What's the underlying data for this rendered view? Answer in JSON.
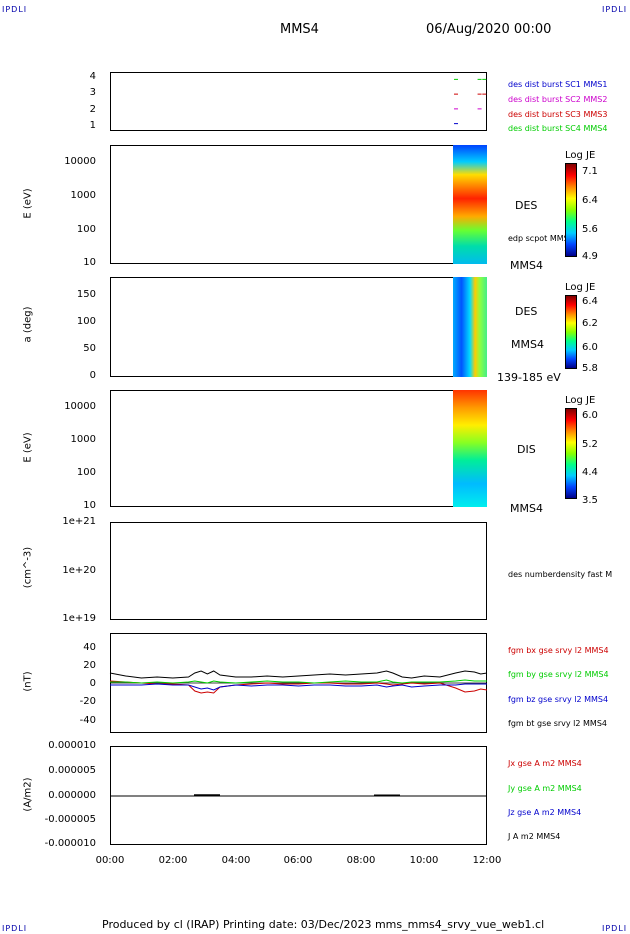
{
  "corners": {
    "tl": "IPDLI",
    "tr": "IPDLI",
    "bl": "IPDLI",
    "br": "IPDLI"
  },
  "header": {
    "spacecraft": "MMS4",
    "datetime": "06/Aug/2020 00:00"
  },
  "footer": "Produced by cl (IRAP)    Printing date: 03/Dec/2023    mms_mms4_srvy_vue_web1.cl",
  "colors": {
    "mms1": "#0000cc",
    "mms2": "#cc00cc",
    "mms3": "#cc0000",
    "mms4": "#00cc00",
    "black": "#000000"
  },
  "chart_data": [
    {
      "type": "scatter",
      "panel": "availability",
      "yticks": [
        "4",
        "3",
        "2",
        "1"
      ],
      "ylim": [
        0.5,
        4.5
      ],
      "legend": [
        {
          "label": "des dist burst SC1 MMS1",
          "color": "#0000cc"
        },
        {
          "label": "des dist burst SC2 MMS2",
          "color": "#cc00cc"
        },
        {
          "label": "des dist burst SC3 MMS3",
          "color": "#cc0000"
        },
        {
          "label": "des dist burst SC4 MMS4",
          "color": "#00cc00"
        }
      ],
      "series": [
        {
          "y": 4,
          "x": [
            10.95,
            11.7,
            11.85
          ],
          "color": "#00cc00"
        },
        {
          "y": 3,
          "x": [
            10.95,
            11.7,
            11.85
          ],
          "color": "#cc0000"
        },
        {
          "y": 2,
          "x": [
            10.95,
            11.7
          ],
          "color": "#cc00cc"
        },
        {
          "y": 1,
          "x": [
            10.95
          ],
          "color": "#0000cc"
        }
      ]
    },
    {
      "type": "heatmap",
      "panel": "des-energy",
      "ylabel": "E (eV)",
      "yticks": [
        "10000",
        "1000",
        "100",
        "10"
      ],
      "scale": "log",
      "ylim": [
        10,
        30000
      ],
      "data_x_range": [
        10.9,
        12.0
      ],
      "labels": [
        "DES",
        "edp scpot MMS4",
        "MMS4"
      ],
      "colorbar": {
        "title": "Log JE",
        "ticks": [
          "7.1",
          "6.4",
          "5.6",
          "4.9"
        ]
      }
    },
    {
      "type": "heatmap",
      "panel": "des-pitch",
      "ylabel": "a (deg)",
      "yticks": [
        "150",
        "100",
        "50",
        "0"
      ],
      "ylim": [
        0,
        180
      ],
      "data_x_range": [
        10.9,
        12.0
      ],
      "labels": [
        "DES",
        "MMS4",
        "139-185 eV"
      ],
      "colorbar": {
        "title": "Log JE",
        "ticks": [
          "6.4",
          "6.2",
          "6.0",
          "5.8"
        ]
      }
    },
    {
      "type": "heatmap",
      "panel": "dis-energy",
      "ylabel": "E (eV)",
      "yticks": [
        "10000",
        "1000",
        "100",
        "10"
      ],
      "scale": "log",
      "ylim": [
        10,
        30000
      ],
      "data_x_range": [
        10.9,
        12.0
      ],
      "labels": [
        "DIS",
        "MMS4"
      ],
      "colorbar": {
        "title": "Log JE",
        "ticks": [
          "6.0",
          "5.2",
          "4.4",
          "3.5"
        ]
      }
    },
    {
      "type": "line",
      "panel": "density",
      "ylabel": "(cm^-3)",
      "yticks": [
        "1e+21",
        "1e+20",
        "1e+19"
      ],
      "scale": "log",
      "ylim": [
        1e+19,
        1e+21
      ],
      "series": [
        {
          "name": "des numberdensity fast M",
          "values": []
        }
      ]
    },
    {
      "type": "line",
      "panel": "fgm",
      "ylabel": "(nT)",
      "yticks": [
        "40",
        "20",
        "0",
        "-20",
        "-40"
      ],
      "ylim": [
        -50,
        50
      ],
      "x": [
        0,
        0.5,
        1,
        1.5,
        2,
        2.5,
        2.7,
        2.9,
        3.1,
        3.3,
        3.5,
        4,
        4.5,
        5,
        5.5,
        6,
        6.5,
        7,
        7.5,
        8,
        8.5,
        8.8,
        9,
        9.3,
        9.6,
        10,
        10.5,
        11,
        11.3,
        11.6,
        11.8,
        12
      ],
      "series": [
        {
          "name": "fgm bx gse srvy l2 MMS4",
          "color": "#cc0000",
          "values": [
            2,
            1,
            0,
            -1,
            -1,
            -2,
            -8,
            -10,
            -9,
            -10,
            -4,
            -2,
            -1,
            0,
            -1,
            -1,
            0,
            0,
            -1,
            -1,
            0,
            -1,
            -2,
            -1,
            0,
            -1,
            0,
            -5,
            -9,
            -8,
            -6,
            -7
          ]
        },
        {
          "name": "fgm by gse srvy l2 MMS4",
          "color": "#00cc00",
          "values": [
            1,
            1,
            0,
            1,
            0,
            1,
            2,
            1,
            0,
            2,
            1,
            0,
            1,
            2,
            1,
            1,
            0,
            1,
            2,
            1,
            1,
            3,
            1,
            0,
            1,
            1,
            1,
            2,
            3,
            2,
            2,
            2
          ]
        },
        {
          "name": "fgm bz gse srvy l2 MMS4",
          "color": "#0000cc",
          "values": [
            -2,
            -2,
            -2,
            -1,
            -2,
            -2,
            -4,
            -6,
            -5,
            -7,
            -4,
            -2,
            -3,
            -2,
            -2,
            -3,
            -2,
            -2,
            -3,
            -3,
            -2,
            -4,
            -3,
            -2,
            -4,
            -3,
            -2,
            -2,
            -1,
            -1,
            -1,
            -1
          ]
        },
        {
          "name": "fgm bt gse srvy l2 MMS4",
          "color": "#000000",
          "values": [
            10,
            7,
            5,
            6,
            5,
            6,
            10,
            12,
            9,
            12,
            8,
            6,
            6,
            7,
            6,
            7,
            8,
            9,
            8,
            9,
            10,
            12,
            10,
            6,
            5,
            7,
            6,
            10,
            12,
            11,
            9,
            10
          ]
        }
      ]
    },
    {
      "type": "line",
      "panel": "current",
      "ylabel": "(A/m2)",
      "yticks": [
        "0.000010",
        "0.000005",
        "0.000000",
        "-0.000005",
        "-0.000010"
      ],
      "ylim": [
        -1e-05,
        1e-05
      ],
      "series": [
        {
          "name": "Jx gse A m2 MMS4",
          "color": "#cc0000",
          "values": []
        },
        {
          "name": "Jy gse A m2 MMS4",
          "color": "#00cc00",
          "values": []
        },
        {
          "name": "Jz gse A m2 MMS4",
          "color": "#0000cc",
          "values": []
        },
        {
          "name": "J A m2 MMS4",
          "color": "#000000",
          "values": []
        }
      ]
    }
  ],
  "xaxis": {
    "ticks": [
      "00:00",
      "02:00",
      "04:00",
      "06:00",
      "08:00",
      "10:00",
      "12:00"
    ],
    "range": [
      0,
      12
    ]
  }
}
